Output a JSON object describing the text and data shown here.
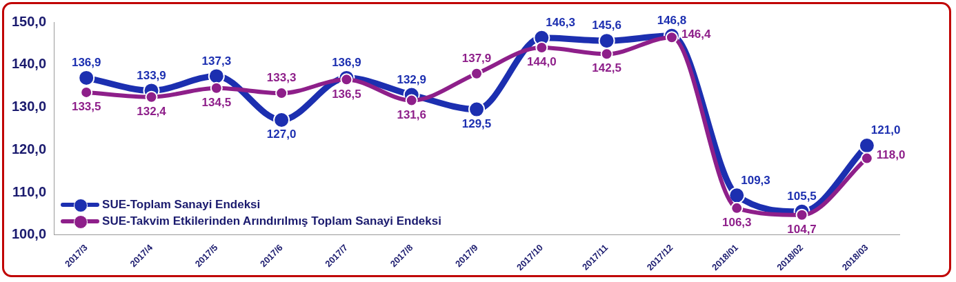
{
  "chart_data": {
    "type": "line",
    "categories": [
      "2017/3",
      "2017/4",
      "2017/5",
      "2017/6",
      "2017/7",
      "2017/8",
      "2017/9",
      "2017/10",
      "2017/11",
      "2017/12",
      "2018/01",
      "2018/02",
      "2018/03"
    ],
    "series": [
      {
        "name": "SUE-Toplam Sanayi Endeksi",
        "color": "#1c2fb0",
        "values": [
          136.9,
          133.9,
          137.3,
          127.0,
          136.9,
          132.9,
          129.5,
          146.3,
          145.6,
          146.8,
          109.3,
          105.5,
          121.0
        ],
        "value_labels": [
          "136,9",
          "133,9",
          "137,3",
          "127,0",
          "136,9",
          "132,9",
          "129,5",
          "146,3",
          "145,6",
          "146,8",
          "109,3",
          "105,5",
          "121,0"
        ]
      },
      {
        "name": "SUE-Takvim Etkilerinden Arındırılmış Toplam Sanayi Endeksi",
        "color": "#8e1f8a",
        "values": [
          133.5,
          132.4,
          134.5,
          133.3,
          136.5,
          131.6,
          137.9,
          144.0,
          142.5,
          146.4,
          106.3,
          104.7,
          118.0
        ],
        "value_labels": [
          "133,5",
          "132,4",
          "134,5",
          "133,3",
          "136,5",
          "131,6",
          "137,9",
          "144,0",
          "142,5",
          "146,4",
          "106,3",
          "104,7",
          "118,0"
        ]
      }
    ],
    "ylim": [
      100,
      150
    ],
    "yticks": [
      {
        "value": 100,
        "label": "100,0"
      },
      {
        "value": 110,
        "label": "110,0"
      },
      {
        "value": 120,
        "label": "120,0"
      },
      {
        "value": 130,
        "label": "130,0"
      },
      {
        "value": 140,
        "label": "140,0"
      },
      {
        "value": 150,
        "label": "150,0"
      }
    ],
    "grid": false,
    "legend": "bottom left",
    "marker": "circle",
    "line_style": "solid"
  }
}
